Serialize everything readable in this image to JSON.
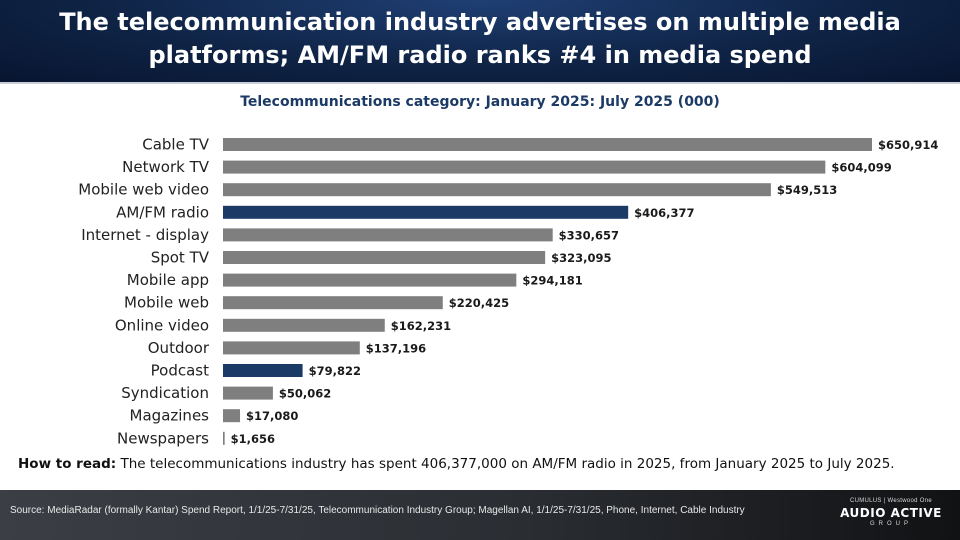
{
  "header": {
    "title": "The telecommunication industry advertises on multiple media platforms; AM/FM radio ranks #4 in media spend"
  },
  "chart_data": {
    "type": "bar",
    "orientation": "horizontal",
    "title": "Telecommunications category: January 2025: July 2025 (000)",
    "categories": [
      "Cable TV",
      "Network TV",
      "Mobile web video",
      "AM/FM radio",
      "Internet - display",
      "Spot TV",
      "Mobile app",
      "Mobile web",
      "Online video",
      "Outdoor",
      "Podcast",
      "Syndication",
      "Magazines",
      "Newspapers"
    ],
    "values": [
      650914,
      604099,
      549513,
      406377,
      330657,
      323095,
      294181,
      220425,
      162231,
      137196,
      79822,
      50062,
      17080,
      1656
    ],
    "value_labels": [
      "$650,914",
      "$604,099",
      "$549,513",
      "$406,377",
      "$330,657",
      "$323,095",
      "$294,181",
      "$220,425",
      "$162,231",
      "$137,196",
      "$79,822",
      "$50,062",
      "$17,080",
      "$1,656"
    ],
    "highlight": [
      "AM/FM radio",
      "Podcast"
    ],
    "colors": {
      "default": "#7f7f7f",
      "highlight": "#1c3a66"
    },
    "xlim": [
      0,
      650914
    ],
    "grid": false,
    "legend": "none"
  },
  "how_to_read": {
    "label": "How to read:",
    "text": " The telecommunications industry has spent 406,377,000 on AM/FM radio in 2025, from January 2025 to July 2025."
  },
  "footer": {
    "source": "Source: MediaRadar (formally Kantar) Spend Report, 1/1/25-7/31/25, Telecommunication Industry Group; Magellan AI, 1/1/25-7/31/25, Phone, Internet, Cable Industry",
    "logo_top": "CUMULUS | Westwood One",
    "logo_brand": "AUDIO ACTIVE",
    "logo_group": "GROUP"
  }
}
